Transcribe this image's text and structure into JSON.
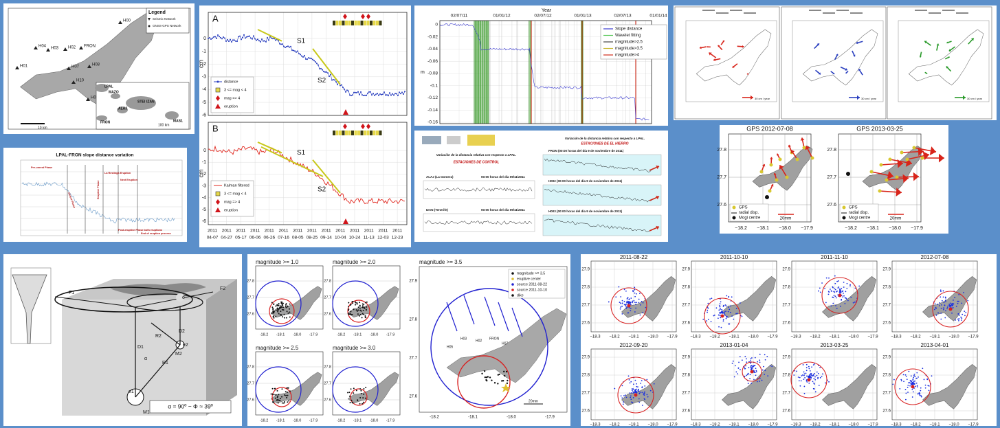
{
  "map_panel": {
    "legend_title": "Legend",
    "legend_items": [
      "Seismic Network",
      "GNSS-GPS Network"
    ],
    "stations": [
      "H00",
      "H04",
      "H03",
      "H02",
      "FRON",
      "H01",
      "H07",
      "H08",
      "H10",
      "H09"
    ],
    "inset": [
      "LPAL",
      "MAZO",
      "ALAJ",
      "STEI",
      "IZAN",
      "FRON",
      "MAS1"
    ],
    "scale": "10 km",
    "inset_scale": "100 km"
  },
  "timeseries_panel": {
    "panels": [
      {
        "label": "A",
        "legend": [
          "distance",
          "3 <= mag < 4",
          "mag => 4",
          "eruption"
        ]
      },
      {
        "label": "B",
        "legend": [
          "Kalman filtered",
          "3 <= mag < 4",
          "mag => 4",
          "eruption"
        ]
      }
    ],
    "annotations": [
      "S1",
      "S2"
    ],
    "y_unit": "cm",
    "yticks": [
      "0",
      "-1",
      "-2",
      "-3",
      "-4",
      "-5",
      "-6"
    ],
    "year": "2011",
    "xticks": [
      "04-07",
      "04-27",
      "05-17",
      "06-06",
      "06-26",
      "07-16",
      "08-05",
      "08-25",
      "09-14",
      "10-04",
      "10-24",
      "11-13",
      "12-03",
      "12-23"
    ]
  },
  "slope_panel": {
    "x_label": "Year",
    "xticks": [
      "02/07/11",
      "01/01/12",
      "02/07/12",
      "01/01/13",
      "02/07/13",
      "01/01/14"
    ],
    "y_label": "m",
    "yticks": [
      "0",
      "-0.02",
      "-0.04",
      "-0.06",
      "-0.08",
      "-0.1",
      "-0.12",
      "-0.14",
      "-0.16"
    ],
    "legend": [
      "Slope distance",
      "Wavelet fitting",
      "magnitude>2.5",
      "magnitude>3.5",
      "magnitude>4"
    ]
  },
  "models_panel": {
    "scale": "30 cm / year"
  },
  "lpal_panel": {
    "title": "LPAL-FRON slope distance variation",
    "phases": [
      "Pre-unrest Phase",
      "Unrest Phase",
      "La Restinga Eruption",
      "Eruptive Phase",
      "Next Eruption",
      "Post-eruptive Phase both eruptions",
      "End of eruption process"
    ]
  },
  "spanish_panel": {
    "title": "Variación de la distancia relativa con respecto a LPAL.",
    "left_heading": "ESTACIONES DE CONTROL",
    "right_heading": "ESTACIONES DE EL HIERRO",
    "left_rows": [
      "ALAJ (La Gomera)",
      "IZAN (Tenerife)"
    ],
    "left_dates": [
      "00:00 horas del día 09/11/2011"
    ],
    "right_rows": [
      "FRON (00:00 horas del día 9 de noviembre de 2011)",
      "H002 (00:00 horas del día 9 de noviembre de 2011)",
      "H003 (00:00 horas del día 9 de noviembre de 2011)"
    ]
  },
  "gps_panel": {
    "titles": [
      "GPS 2012-07-08",
      "GPS 2013-03-25"
    ],
    "legend": [
      "GPS",
      "radial disp.",
      "Mogi centre"
    ],
    "scale": "20mm",
    "yticks": [
      "27.8",
      "27.7",
      "27.6"
    ],
    "xticks": [
      "−18.2",
      "−18.1",
      "−18.0",
      "−17.9"
    ]
  },
  "diagram": {
    "labels": [
      "F1",
      "F2",
      "D1",
      "D2",
      "R1",
      "R2",
      "M1",
      "M2",
      "α",
      "e",
      "e1",
      "e2"
    ],
    "formula": "α = 90º − Φ ≈ 39º"
  },
  "magnitude_panel": {
    "titles": [
      "magnitude >= 1.0",
      "magnitude >= 2.0",
      "magnitude >= 2.5",
      "magnitude >= 3.0",
      "magnitude >= 3.5"
    ],
    "legend": [
      "magnitude >= 3.5",
      "eruptive center",
      "source 2011-08-22",
      "source 2011-10-10",
      "dike"
    ],
    "yticks": [
      "27.8",
      "27.7",
      "27.6"
    ],
    "big_yticks": [
      "27.9",
      "27.8",
      "27.7",
      "27.6"
    ],
    "xticks": [
      "-18.2",
      "-18.1",
      "-18.0",
      "-17.9"
    ],
    "stations": [
      "H05",
      "H03",
      "H02",
      "FRON",
      "H07"
    ],
    "scale": "20mm"
  },
  "dates_panel": {
    "titles": [
      "2011-08-22",
      "2011-10-10",
      "2011-11-10",
      "2012-07-08",
      "2012-09-20",
      "2013-01-04",
      "2013-03-25",
      "2013-04-01"
    ],
    "yticks": [
      "27.9",
      "27.8",
      "27.7",
      "27.6"
    ],
    "xticks": [
      "−18.3",
      "−18.2",
      "−18.1",
      "−18.0",
      "−17.9"
    ]
  }
}
